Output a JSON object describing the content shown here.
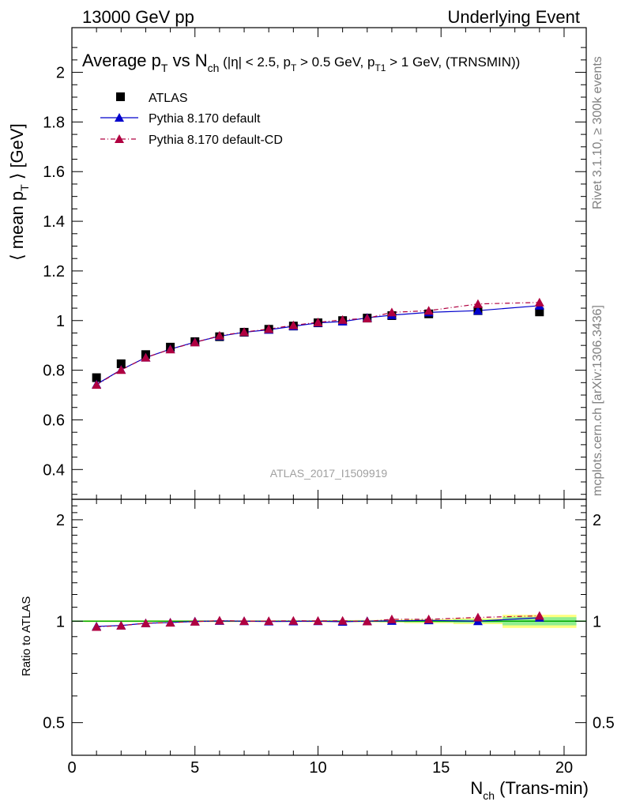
{
  "header": {
    "left": "13000 GeV pp",
    "right": "Underlying Event"
  },
  "side": {
    "rivet": "Rivet 3.1.10, ≥ 300k events",
    "mcplots": "mcplots.cern.ch [arXiv:1306.3436]"
  },
  "chart_data": {
    "type": "scatter",
    "title_parts": {
      "main": "Average p",
      "main_sub": "T",
      "vs": " vs N",
      "vs_sub": "ch",
      "cuts_a": " (|η| < 2.5, p",
      "cuts_a_sub": "T",
      "cuts_b": " > 0.5 GeV, p",
      "cuts_b_sub": "T1",
      "cuts_c": " > 1 GeV, (TRNSMIN))"
    },
    "ylabel_parts": {
      "a": "⟨ mean p",
      "sub": "T",
      "b": " ⟩ [GeV]"
    },
    "xlabel_parts": {
      "a": "N",
      "sub": "ch",
      "b": " (Trans-min)"
    },
    "ratio_ylabel": "Ratio to ATLAS",
    "watermark": "ATLAS_2017_I1509919",
    "xlim": [
      0,
      20.9
    ],
    "ylim": [
      0.28,
      2.18
    ],
    "ratio_ylim": [
      0.4,
      2.3
    ],
    "x_ticks": [
      0,
      5,
      10,
      15,
      20
    ],
    "y_ticks": [
      0.4,
      0.6,
      0.8,
      1,
      1.2,
      1.4,
      1.6,
      1.8,
      2
    ],
    "ratio_ticks": [
      0.5,
      1,
      2
    ],
    "series": [
      {
        "name": "ATLAS",
        "color": "#000000",
        "marker": "square",
        "x": [
          1,
          2,
          3,
          4,
          5,
          6,
          7,
          8,
          9,
          10,
          11,
          12,
          13,
          14.5,
          16.5,
          19
        ],
        "y": [
          0.77,
          0.826,
          0.863,
          0.893,
          0.915,
          0.935,
          0.953,
          0.965,
          0.978,
          0.991,
          1.0,
          1.01,
          1.02,
          1.027,
          1.04,
          1.035
        ]
      },
      {
        "name": "Pythia 8.170 default",
        "color": "#0000cc",
        "marker": "triangle",
        "line": "solid",
        "x": [
          1,
          2,
          3,
          4,
          5,
          6,
          7,
          8,
          9,
          10,
          11,
          12,
          13,
          14.5,
          16.5,
          19
        ],
        "y": [
          0.743,
          0.802,
          0.851,
          0.885,
          0.913,
          0.937,
          0.953,
          0.963,
          0.977,
          0.991,
          0.996,
          1.011,
          1.022,
          1.033,
          1.04,
          1.06
        ]
      },
      {
        "name": "Pythia 8.170 default-CD",
        "color": "#b00040",
        "marker": "triangle",
        "line": "dashdot",
        "x": [
          1,
          2,
          3,
          4,
          5,
          6,
          7,
          8,
          9,
          10,
          11,
          12,
          13,
          14.5,
          16.5,
          19
        ],
        "y": [
          0.741,
          0.801,
          0.851,
          0.884,
          0.912,
          0.939,
          0.954,
          0.966,
          0.981,
          0.993,
          1.003,
          1.009,
          1.033,
          1.04,
          1.067,
          1.073
        ]
      }
    ],
    "ratio_band_bins": [
      {
        "x0": 0.5,
        "x1": 1.5,
        "stat": 0.004,
        "total": 0.006
      },
      {
        "x0": 1.5,
        "x1": 2.5,
        "stat": 0.004,
        "total": 0.006
      },
      {
        "x0": 2.5,
        "x1": 3.5,
        "stat": 0.004,
        "total": 0.006
      },
      {
        "x0": 3.5,
        "x1": 4.5,
        "stat": 0.004,
        "total": 0.006
      },
      {
        "x0": 4.5,
        "x1": 5.5,
        "stat": 0.004,
        "total": 0.006
      },
      {
        "x0": 5.5,
        "x1": 6.5,
        "stat": 0.004,
        "total": 0.006
      },
      {
        "x0": 6.5,
        "x1": 7.5,
        "stat": 0.004,
        "total": 0.006
      },
      {
        "x0": 7.5,
        "x1": 8.5,
        "stat": 0.004,
        "total": 0.006
      },
      {
        "x0": 8.5,
        "x1": 9.5,
        "stat": 0.004,
        "total": 0.006
      },
      {
        "x0": 9.5,
        "x1": 10.5,
        "stat": 0.004,
        "total": 0.007
      },
      {
        "x0": 10.5,
        "x1": 11.5,
        "stat": 0.004,
        "total": 0.007
      },
      {
        "x0": 11.5,
        "x1": 12.5,
        "stat": 0.005,
        "total": 0.008
      },
      {
        "x0": 12.5,
        "x1": 13.5,
        "stat": 0.006,
        "total": 0.01
      },
      {
        "x0": 13.5,
        "x1": 15.5,
        "stat": 0.008,
        "total": 0.014
      },
      {
        "x0": 15.5,
        "x1": 17.5,
        "stat": 0.012,
        "total": 0.02
      },
      {
        "x0": 17.5,
        "x1": 20.5,
        "stat": 0.028,
        "total": 0.045
      }
    ],
    "ratio_series": [
      {
        "name": "Pythia 8.170 default",
        "color": "#0000cc",
        "line": "solid",
        "x": [
          1,
          2,
          3,
          4,
          5,
          6,
          7,
          8,
          9,
          10,
          11,
          12,
          13,
          14.5,
          16.5,
          19
        ],
        "y": [
          0.965,
          0.971,
          0.986,
          0.991,
          0.998,
          1.002,
          1.0,
          0.998,
          0.999,
          1.0,
          0.996,
          1.001,
          1.002,
          1.006,
          1.0,
          1.024
        ]
      },
      {
        "name": "Pythia 8.170 default-CD",
        "color": "#b00040",
        "line": "dashdot",
        "x": [
          1,
          2,
          3,
          4,
          5,
          6,
          7,
          8,
          9,
          10,
          11,
          12,
          13,
          14.5,
          16.5,
          19
        ],
        "y": [
          0.962,
          0.97,
          0.986,
          0.99,
          0.997,
          1.004,
          1.001,
          1.001,
          1.003,
          1.002,
          1.003,
          0.999,
          1.013,
          1.013,
          1.026,
          1.037
        ]
      }
    ],
    "colors": {
      "stat_band": "#90ee90",
      "total_band": "#ffff80",
      "reference_line": "#00aa00",
      "watermark": "#a0a0a0"
    }
  }
}
